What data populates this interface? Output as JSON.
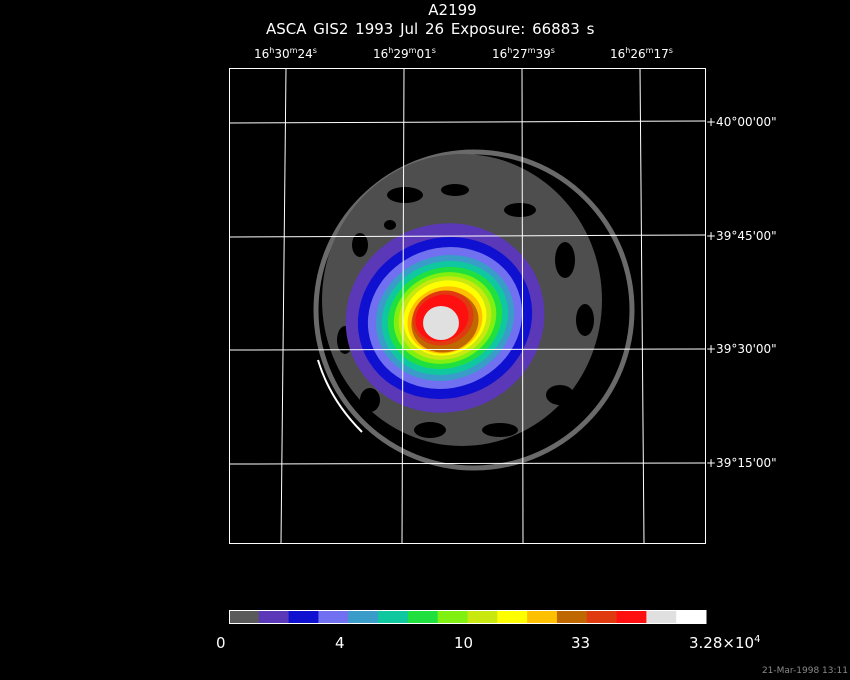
{
  "header": {
    "title": "A2199",
    "subtitle": "ASCA GIS2   1993 Jul 26    Exposure: 66883 s"
  },
  "ra_labels": [
    {
      "h": "16",
      "m": "30",
      "s": "24",
      "s_unit": "s"
    },
    {
      "h": "16",
      "m": "29",
      "s": "01",
      "s_unit": "s"
    },
    {
      "h": "16",
      "m": "27",
      "s": "39",
      "s_unit": "s"
    },
    {
      "h": "16",
      "m": "26",
      "s": "17",
      "s_unit": "s"
    }
  ],
  "dec_labels": [
    "+40°00'00\"",
    "+39°45'00\"",
    "+39°30'00\"",
    "+39°15'00\""
  ],
  "colorbar": {
    "colors": [
      "#5a5a5a",
      "#5a38b8",
      "#1010d0",
      "#7070f0",
      "#3a9cc8",
      "#10c8a0",
      "#20e040",
      "#80f010",
      "#c8e810",
      "#ffff00",
      "#ffc000",
      "#c06800",
      "#e03a10",
      "#ff1010",
      "#e0e0e0",
      "#ffffff"
    ],
    "labels": [
      "0",
      "4",
      "10",
      "33"
    ],
    "max_label_base": "3.28×10",
    "max_label_exp": "4"
  },
  "timestamp": "21-Mar-1998 13:11"
}
